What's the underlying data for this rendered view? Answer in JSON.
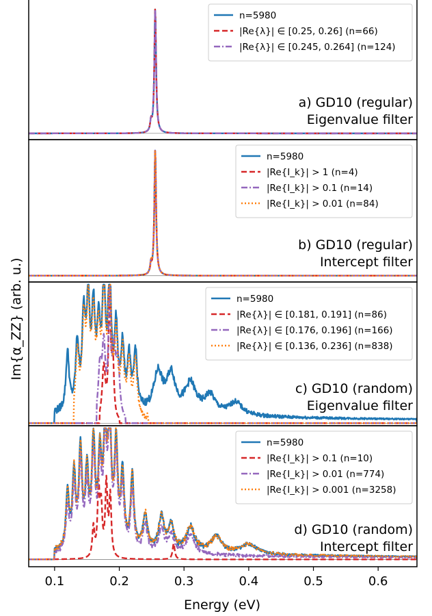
{
  "figure": {
    "ylabel": "Im{α_ZZ} (arb. u.)",
    "xlabel": "Energy (eV)"
  },
  "chart_data": [
    {
      "type": "line",
      "title_line1": "a) GD10 (regular)",
      "title_line2": "Eigenvalue filter",
      "xlim": [
        0.06,
        0.66
      ],
      "ylim": [
        -0.05,
        1.08
      ],
      "grid": false,
      "legend_position": "top-right",
      "series": [
        {
          "name": "n=5980",
          "color": "#1f77b4",
          "dash": "solid",
          "peaks": [
            [
              0.2555,
              1.0,
              0.0016
            ],
            [
              0.249,
              0.08,
              0.0015
            ]
          ],
          "floor": 0.0,
          "noise": 0.0
        },
        {
          "name": "|Re{λ}| ∈ [0.25, 0.26] (n=66)",
          "color": "#d62728",
          "dash": "dashed",
          "peaks": [
            [
              0.2555,
              1.0,
              0.0016
            ],
            [
              0.249,
              0.08,
              0.0015
            ]
          ],
          "floor": 0.0,
          "noise": 0.0
        },
        {
          "name": "|Re{λ}| ∈ [0.245, 0.264] (n=124)",
          "color": "#9467bd",
          "dash": "dashdot",
          "peaks": [
            [
              0.2555,
              1.0,
              0.0016
            ],
            [
              0.249,
              0.08,
              0.0015
            ]
          ],
          "floor": 0.0,
          "noise": 0.0
        }
      ]
    },
    {
      "type": "line",
      "title_line1": "b) GD10 (regular)",
      "title_line2": "Intercept filter",
      "xlim": [
        0.06,
        0.66
      ],
      "ylim": [
        -0.05,
        1.08
      ],
      "grid": false,
      "legend_position": "top-right",
      "series": [
        {
          "name": "n=5980",
          "color": "#1f77b4",
          "dash": "solid",
          "peaks": [
            [
              0.2555,
              1.0,
              0.0016
            ],
            [
              0.249,
              0.08,
              0.0015
            ]
          ],
          "floor": 0.0,
          "noise": 0.0
        },
        {
          "name": "|Re{I_k}| > 1 (n=4)",
          "color": "#d62728",
          "dash": "dashed",
          "peaks": [
            [
              0.2555,
              1.0,
              0.0016
            ],
            [
              0.249,
              0.06,
              0.0015
            ]
          ],
          "floor": 0.0,
          "noise": 0.0
        },
        {
          "name": "|Re{I_k}| > 0.1 (n=14)",
          "color": "#9467bd",
          "dash": "dashdot",
          "peaks": [
            [
              0.2555,
              1.0,
              0.0016
            ],
            [
              0.249,
              0.08,
              0.0015
            ]
          ],
          "floor": 0.0,
          "noise": 0.0
        },
        {
          "name": "|Re{I_k}| > 0.01 (n=84)",
          "color": "#ff7f0e",
          "dash": "dotted",
          "peaks": [
            [
              0.2555,
              1.0,
              0.0016
            ],
            [
              0.249,
              0.08,
              0.0015
            ]
          ],
          "floor": 0.0,
          "noise": 0.0
        }
      ]
    },
    {
      "type": "line",
      "title_line1": "c) GD10 (random)",
      "title_line2": "Eigenvalue filter",
      "xlim": [
        0.06,
        0.66
      ],
      "ylim": [
        -0.02,
        1.1
      ],
      "grid": false,
      "legend_position": "top-right",
      "series": [
        {
          "name": "n=5980",
          "color": "#1f77b4",
          "dash": "solid",
          "range": [
            0.1,
            0.66
          ],
          "floor": 0.04,
          "noise": 0.06,
          "peaks": [
            [
              0.12,
              0.45,
              0.003
            ],
            [
              0.135,
              0.5,
              0.003
            ],
            [
              0.145,
              0.68,
              0.003
            ],
            [
              0.152,
              0.8,
              0.003
            ],
            [
              0.16,
              0.72,
              0.003
            ],
            [
              0.168,
              0.58,
              0.003
            ],
            [
              0.176,
              0.9,
              0.003
            ],
            [
              0.185,
              1.0,
              0.003
            ],
            [
              0.195,
              0.6,
              0.003
            ],
            [
              0.205,
              0.48,
              0.003
            ],
            [
              0.215,
              0.4,
              0.003
            ],
            [
              0.225,
              0.45,
              0.003
            ],
            [
              0.26,
              0.3,
              0.008
            ],
            [
              0.28,
              0.28,
              0.008
            ],
            [
              0.31,
              0.22,
              0.01
            ],
            [
              0.34,
              0.14,
              0.01
            ],
            [
              0.38,
              0.1,
              0.012
            ]
          ]
        },
        {
          "name": "|Re{λ}| ∈ [0.181, 0.191] (n=86)",
          "color": "#d62728",
          "dash": "dashed",
          "range": [
            0.17,
            0.2
          ],
          "floor": 0.0,
          "noise": 0.0,
          "peaks": [
            [
              0.176,
              0.42,
              0.003
            ],
            [
              0.185,
              0.95,
              0.002
            ],
            [
              0.19,
              0.45,
              0.002
            ]
          ]
        },
        {
          "name": "|Re{λ}| ∈ [0.176, 0.196] (n=166)",
          "color": "#9467bd",
          "dash": "dashdot",
          "range": [
            0.165,
            0.21
          ],
          "floor": 0.0,
          "noise": 0.0,
          "peaks": [
            [
              0.17,
              0.38,
              0.003
            ],
            [
              0.176,
              0.55,
              0.003
            ],
            [
              0.185,
              0.98,
              0.002
            ],
            [
              0.192,
              0.5,
              0.003
            ],
            [
              0.198,
              0.42,
              0.003
            ]
          ]
        },
        {
          "name": "|Re{λ}| ∈ [0.136, 0.236] (n=838)",
          "color": "#ff7f0e",
          "dash": "dotted",
          "range": [
            0.13,
            0.245
          ],
          "floor": 0.0,
          "noise": 0.05,
          "peaks": [
            [
              0.135,
              0.5,
              0.003
            ],
            [
              0.145,
              0.68,
              0.003
            ],
            [
              0.152,
              0.8,
              0.003
            ],
            [
              0.16,
              0.72,
              0.003
            ],
            [
              0.168,
              0.58,
              0.003
            ],
            [
              0.176,
              0.9,
              0.003
            ],
            [
              0.185,
              1.0,
              0.003
            ],
            [
              0.195,
              0.6,
              0.003
            ],
            [
              0.205,
              0.48,
              0.003
            ],
            [
              0.215,
              0.4,
              0.003
            ],
            [
              0.225,
              0.45,
              0.003
            ]
          ]
        }
      ]
    },
    {
      "type": "line",
      "title_line1": "d) GD10 (random)",
      "title_line2": "Intercept filter",
      "xlim": [
        0.06,
        0.66
      ],
      "ylim": [
        -0.06,
        1.1
      ],
      "grid": false,
      "legend_position": "top-right",
      "series": [
        {
          "name": "n=5980",
          "color": "#1f77b4",
          "dash": "solid",
          "range": [
            0.1,
            0.66
          ],
          "floor": 0.03,
          "noise": 0.05,
          "peaks": [
            [
              0.12,
              0.45,
              0.003
            ],
            [
              0.13,
              0.6,
              0.003
            ],
            [
              0.14,
              0.78,
              0.003
            ],
            [
              0.15,
              0.6,
              0.003
            ],
            [
              0.16,
              0.85,
              0.003
            ],
            [
              0.17,
              0.72,
              0.003
            ],
            [
              0.178,
              0.88,
              0.003
            ],
            [
              0.185,
              1.0,
              0.003
            ],
            [
              0.195,
              0.82,
              0.003
            ],
            [
              0.205,
              0.6,
              0.003
            ],
            [
              0.22,
              0.6,
              0.003
            ],
            [
              0.24,
              0.3,
              0.004
            ],
            [
              0.265,
              0.28,
              0.005
            ],
            [
              0.28,
              0.2,
              0.005
            ],
            [
              0.31,
              0.2,
              0.008
            ],
            [
              0.35,
              0.13,
              0.01
            ],
            [
              0.4,
              0.08,
              0.015
            ]
          ]
        },
        {
          "name": "|Re{I_k}| > 0.1 (n=10)",
          "color": "#d62728",
          "dash": "dashed",
          "range": [
            0.06,
            0.66
          ],
          "floor": 0.0,
          "noise": 0.0,
          "peaks": [
            [
              0.16,
              0.25,
              0.002
            ],
            [
              0.168,
              0.55,
              0.002
            ],
            [
              0.172,
              0.38,
              0.002
            ],
            [
              0.18,
              0.6,
              0.002
            ],
            [
              0.186,
              0.5,
              0.002
            ],
            [
              0.284,
              0.13,
              0.002
            ]
          ]
        },
        {
          "name": "|Re{I_k}| > 0.01 (n=774)",
          "color": "#9467bd",
          "dash": "dashdot",
          "range": [
            0.1,
            0.66
          ],
          "floor": 0.02,
          "noise": 0.04,
          "peaks": [
            [
              0.12,
              0.35,
              0.003
            ],
            [
              0.13,
              0.52,
              0.003
            ],
            [
              0.14,
              0.7,
              0.003
            ],
            [
              0.15,
              0.5,
              0.003
            ],
            [
              0.16,
              0.78,
              0.003
            ],
            [
              0.17,
              0.62,
              0.003
            ],
            [
              0.178,
              0.8,
              0.003
            ],
            [
              0.185,
              0.97,
              0.003
            ],
            [
              0.195,
              0.75,
              0.003
            ],
            [
              0.205,
              0.5,
              0.003
            ],
            [
              0.22,
              0.5,
              0.003
            ],
            [
              0.24,
              0.22,
              0.004
            ],
            [
              0.265,
              0.2,
              0.005
            ],
            [
              0.28,
              0.15,
              0.005
            ],
            [
              0.31,
              0.15,
              0.008
            ]
          ]
        },
        {
          "name": "|Re{I_k}| > 0.001 (n=3258)",
          "color": "#ff7f0e",
          "dash": "dotted",
          "range": [
            0.1,
            0.66
          ],
          "floor": 0.03,
          "noise": 0.05,
          "peaks": [
            [
              0.12,
              0.45,
              0.003
            ],
            [
              0.13,
              0.6,
              0.003
            ],
            [
              0.14,
              0.78,
              0.003
            ],
            [
              0.15,
              0.6,
              0.003
            ],
            [
              0.16,
              0.85,
              0.003
            ],
            [
              0.17,
              0.72,
              0.003
            ],
            [
              0.178,
              0.88,
              0.003
            ],
            [
              0.185,
              1.0,
              0.003
            ],
            [
              0.195,
              0.82,
              0.003
            ],
            [
              0.205,
              0.6,
              0.003
            ],
            [
              0.22,
              0.6,
              0.003
            ],
            [
              0.24,
              0.3,
              0.004
            ],
            [
              0.265,
              0.28,
              0.005
            ],
            [
              0.28,
              0.2,
              0.005
            ],
            [
              0.31,
              0.2,
              0.008
            ],
            [
              0.35,
              0.13,
              0.01
            ],
            [
              0.4,
              0.08,
              0.015
            ]
          ]
        }
      ]
    }
  ],
  "x_ticks": [
    0.1,
    0.2,
    0.3,
    0.4,
    0.5,
    0.6
  ]
}
